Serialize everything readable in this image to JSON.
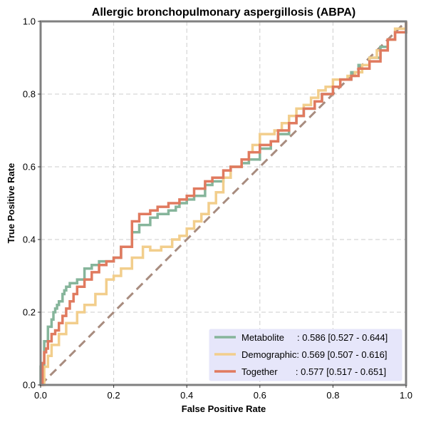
{
  "chart_data": {
    "type": "line",
    "title": "Allergic bronchopulmonary aspergillosis (ABPA)",
    "xlabel": "False Positive Rate",
    "ylabel": "True Positive Rate",
    "xlim": [
      0,
      1
    ],
    "ylim": [
      0,
      1
    ],
    "xticks": [
      "0.0",
      "0.2",
      "0.4",
      "0.6",
      "0.8",
      "1.0"
    ],
    "yticks": [
      "0.0",
      "0.2",
      "0.4",
      "0.6",
      "0.8",
      "1.0"
    ],
    "grid": true,
    "legend_position": "lower-right",
    "diagonal": {
      "x": [
        0,
        1
      ],
      "y": [
        0,
        1
      ],
      "color": "#a88c7f"
    },
    "series": [
      {
        "name": "Metabolite",
        "legend_label": "Metabolite     : 0.586 [0.527 - 0.644]",
        "color": "#86b59b",
        "x": [
          0,
          0,
          0.01,
          0.01,
          0.02,
          0.02,
          0.03,
          0.035,
          0.04,
          0.045,
          0.05,
          0.06,
          0.065,
          0.07,
          0.08,
          0.1,
          0.12,
          0.14,
          0.15,
          0.16,
          0.18,
          0.2,
          0.22,
          0.25,
          0.27,
          0.3,
          0.32,
          0.35,
          0.37,
          0.38,
          0.4,
          0.42,
          0.45,
          0.47,
          0.5,
          0.52,
          0.55,
          0.57,
          0.6,
          0.63,
          0.65,
          0.68,
          0.7,
          0.72,
          0.75,
          0.77,
          0.8,
          0.82,
          0.85,
          0.87,
          0.9,
          0.93,
          0.95,
          0.97,
          1.0
        ],
        "y": [
          0,
          0.05,
          0.08,
          0.12,
          0.14,
          0.16,
          0.18,
          0.2,
          0.21,
          0.22,
          0.23,
          0.25,
          0.26,
          0.27,
          0.28,
          0.29,
          0.32,
          0.33,
          0.33,
          0.34,
          0.34,
          0.35,
          0.38,
          0.42,
          0.44,
          0.46,
          0.47,
          0.48,
          0.49,
          0.5,
          0.51,
          0.52,
          0.55,
          0.56,
          0.57,
          0.6,
          0.61,
          0.62,
          0.65,
          0.67,
          0.69,
          0.72,
          0.74,
          0.76,
          0.78,
          0.8,
          0.82,
          0.84,
          0.86,
          0.88,
          0.9,
          0.93,
          0.95,
          0.97,
          1.0
        ]
      },
      {
        "name": "Demographic",
        "legend_label": "Demographic: 0.569 [0.507 - 0.616]",
        "color": "#f2ce8c",
        "x": [
          0,
          0.01,
          0.02,
          0.03,
          0.05,
          0.07,
          0.1,
          0.12,
          0.15,
          0.18,
          0.2,
          0.22,
          0.25,
          0.28,
          0.3,
          0.33,
          0.36,
          0.38,
          0.4,
          0.42,
          0.44,
          0.46,
          0.48,
          0.5,
          0.52,
          0.55,
          0.57,
          0.58,
          0.6,
          0.62,
          0.64,
          0.66,
          0.68,
          0.7,
          0.72,
          0.74,
          0.76,
          0.78,
          0.8,
          0.82,
          0.84,
          0.86,
          0.88,
          0.9,
          0.92,
          0.95,
          0.97,
          1.0
        ],
        "y": [
          0,
          0.05,
          0.08,
          0.11,
          0.14,
          0.17,
          0.2,
          0.22,
          0.25,
          0.29,
          0.3,
          0.32,
          0.35,
          0.38,
          0.37,
          0.38,
          0.4,
          0.41,
          0.43,
          0.45,
          0.47,
          0.5,
          0.53,
          0.57,
          0.6,
          0.62,
          0.64,
          0.66,
          0.69,
          0.69,
          0.7,
          0.72,
          0.74,
          0.76,
          0.77,
          0.79,
          0.81,
          0.82,
          0.84,
          0.84,
          0.85,
          0.86,
          0.88,
          0.9,
          0.92,
          0.95,
          0.98,
          1.0
        ]
      },
      {
        "name": "Together",
        "legend_label": "Together       : 0.577 [0.517 - 0.651]",
        "color": "#e07a5f",
        "x": [
          0,
          0.005,
          0.01,
          0.015,
          0.02,
          0.03,
          0.04,
          0.05,
          0.06,
          0.07,
          0.08,
          0.09,
          0.1,
          0.12,
          0.14,
          0.16,
          0.18,
          0.2,
          0.22,
          0.25,
          0.27,
          0.3,
          0.32,
          0.35,
          0.38,
          0.4,
          0.42,
          0.45,
          0.47,
          0.5,
          0.52,
          0.55,
          0.57,
          0.6,
          0.63,
          0.65,
          0.68,
          0.7,
          0.72,
          0.75,
          0.77,
          0.8,
          0.82,
          0.85,
          0.87,
          0.9,
          0.93,
          0.95,
          0.97,
          1.0
        ],
        "y": [
          0,
          0.06,
          0.09,
          0.1,
          0.12,
          0.14,
          0.15,
          0.17,
          0.19,
          0.21,
          0.23,
          0.25,
          0.27,
          0.29,
          0.31,
          0.33,
          0.34,
          0.35,
          0.38,
          0.45,
          0.47,
          0.48,
          0.49,
          0.5,
          0.51,
          0.52,
          0.54,
          0.56,
          0.57,
          0.59,
          0.6,
          0.62,
          0.64,
          0.66,
          0.67,
          0.7,
          0.72,
          0.74,
          0.76,
          0.78,
          0.8,
          0.82,
          0.84,
          0.85,
          0.87,
          0.89,
          0.92,
          0.95,
          0.97,
          1.0
        ]
      }
    ]
  }
}
